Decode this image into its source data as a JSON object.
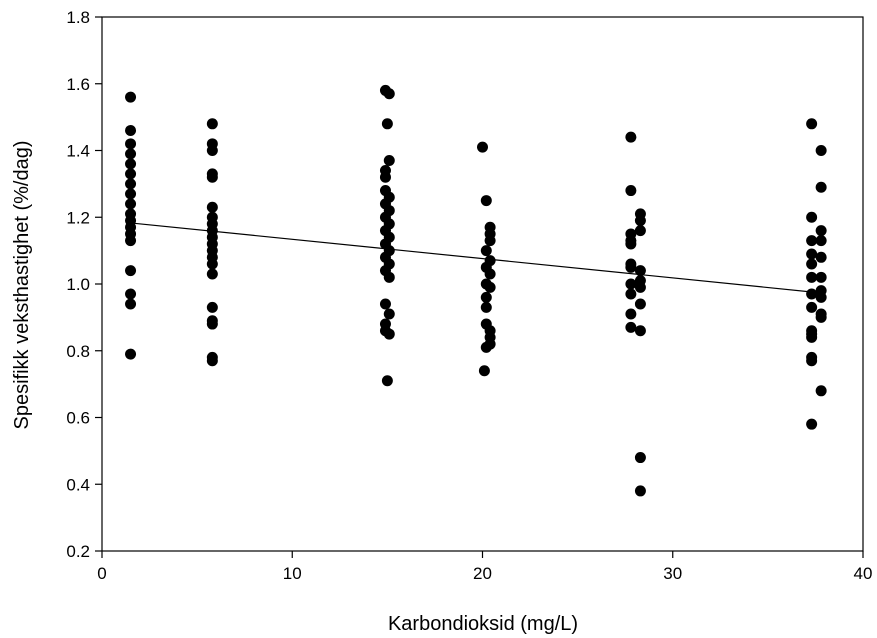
{
  "chart_data": {
    "type": "scatter",
    "title": "",
    "xlabel": "Karbondioksid (mg/L)",
    "ylabel": "Spesifikk veksthastighet (%/dag)",
    "xlim": [
      0,
      40
    ],
    "ylim": [
      0.2,
      1.8
    ],
    "x_ticks": [
      "0",
      "10",
      "20",
      "30",
      "40"
    ],
    "y_ticks": [
      "0.2",
      "0.4",
      "0.6",
      "0.8",
      "1.0",
      "1.2",
      "1.4",
      "1.6",
      "1.8"
    ],
    "grid": false,
    "legend": "none",
    "marker_color": "#000000",
    "series": [
      {
        "points": [
          [
            1.5,
            1.56
          ],
          [
            1.5,
            1.46
          ],
          [
            1.5,
            1.42
          ],
          [
            1.5,
            1.39
          ],
          [
            1.5,
            1.36
          ],
          [
            1.5,
            1.33
          ],
          [
            1.5,
            1.3
          ],
          [
            1.5,
            1.27
          ],
          [
            1.5,
            1.24
          ],
          [
            1.5,
            1.21
          ],
          [
            1.5,
            1.19
          ],
          [
            1.5,
            1.17
          ],
          [
            1.5,
            1.15
          ],
          [
            1.5,
            1.13
          ],
          [
            1.5,
            1.04
          ],
          [
            1.5,
            0.97
          ],
          [
            1.5,
            0.94
          ],
          [
            1.5,
            0.79
          ],
          [
            5.8,
            1.48
          ],
          [
            5.8,
            1.42
          ],
          [
            5.8,
            1.4
          ],
          [
            5.8,
            1.33
          ],
          [
            5.8,
            1.32
          ],
          [
            5.8,
            1.23
          ],
          [
            5.8,
            1.2
          ],
          [
            5.8,
            1.18
          ],
          [
            5.8,
            1.16
          ],
          [
            5.8,
            1.14
          ],
          [
            5.8,
            1.12
          ],
          [
            5.8,
            1.1
          ],
          [
            5.8,
            1.08
          ],
          [
            5.8,
            1.06
          ],
          [
            5.8,
            1.03
          ],
          [
            5.8,
            0.93
          ],
          [
            5.8,
            0.89
          ],
          [
            5.8,
            0.88
          ],
          [
            5.8,
            0.78
          ],
          [
            5.8,
            0.77
          ],
          [
            14.9,
            1.58
          ],
          [
            15.1,
            1.57
          ],
          [
            15.0,
            1.48
          ],
          [
            15.1,
            1.37
          ],
          [
            14.9,
            1.34
          ],
          [
            14.9,
            1.32
          ],
          [
            14.9,
            1.28
          ],
          [
            15.1,
            1.26
          ],
          [
            14.9,
            1.24
          ],
          [
            15.1,
            1.22
          ],
          [
            14.9,
            1.2
          ],
          [
            15.1,
            1.18
          ],
          [
            14.9,
            1.16
          ],
          [
            15.1,
            1.14
          ],
          [
            14.9,
            1.12
          ],
          [
            15.1,
            1.1
          ],
          [
            14.9,
            1.08
          ],
          [
            15.1,
            1.06
          ],
          [
            14.9,
            1.04
          ],
          [
            15.1,
            1.02
          ],
          [
            14.9,
            0.94
          ],
          [
            15.1,
            0.91
          ],
          [
            14.9,
            0.88
          ],
          [
            14.9,
            0.86
          ],
          [
            15.1,
            0.85
          ],
          [
            15.0,
            0.71
          ],
          [
            20.0,
            1.41
          ],
          [
            20.2,
            1.25
          ],
          [
            20.4,
            1.17
          ],
          [
            20.4,
            1.15
          ],
          [
            20.4,
            1.13
          ],
          [
            20.2,
            1.1
          ],
          [
            20.4,
            1.07
          ],
          [
            20.2,
            1.05
          ],
          [
            20.4,
            1.03
          ],
          [
            20.2,
            1.0
          ],
          [
            20.4,
            0.99
          ],
          [
            20.2,
            0.96
          ],
          [
            20.2,
            0.93
          ],
          [
            20.2,
            0.88
          ],
          [
            20.4,
            0.86
          ],
          [
            20.4,
            0.84
          ],
          [
            20.2,
            0.81
          ],
          [
            20.4,
            0.82
          ],
          [
            20.1,
            0.74
          ],
          [
            27.8,
            1.44
          ],
          [
            27.8,
            1.28
          ],
          [
            28.3,
            1.21
          ],
          [
            28.3,
            1.19
          ],
          [
            28.3,
            1.16
          ],
          [
            27.8,
            1.15
          ],
          [
            27.8,
            1.13
          ],
          [
            27.8,
            1.12
          ],
          [
            27.8,
            1.06
          ],
          [
            27.8,
            1.05
          ],
          [
            28.3,
            1.04
          ],
          [
            28.3,
            1.01
          ],
          [
            27.8,
            1.0
          ],
          [
            28.3,
            0.99
          ],
          [
            27.8,
            0.97
          ],
          [
            28.3,
            0.94
          ],
          [
            27.8,
            0.91
          ],
          [
            27.8,
            0.87
          ],
          [
            28.3,
            0.86
          ],
          [
            28.3,
            0.48
          ],
          [
            28.3,
            0.38
          ],
          [
            37.3,
            1.48
          ],
          [
            37.8,
            1.4
          ],
          [
            37.8,
            1.29
          ],
          [
            37.3,
            1.2
          ],
          [
            37.8,
            1.16
          ],
          [
            37.3,
            1.13
          ],
          [
            37.8,
            1.13
          ],
          [
            37.3,
            1.09
          ],
          [
            37.8,
            1.08
          ],
          [
            37.3,
            1.06
          ],
          [
            37.3,
            1.02
          ],
          [
            37.8,
            1.02
          ],
          [
            37.8,
            0.98
          ],
          [
            37.3,
            0.97
          ],
          [
            37.8,
            0.96
          ],
          [
            37.3,
            0.93
          ],
          [
            37.8,
            0.91
          ],
          [
            37.8,
            0.9
          ],
          [
            37.3,
            0.86
          ],
          [
            37.3,
            0.85
          ],
          [
            37.3,
            0.84
          ],
          [
            37.3,
            0.78
          ],
          [
            37.3,
            0.77
          ],
          [
            37.8,
            0.68
          ],
          [
            37.3,
            0.58
          ]
        ]
      }
    ],
    "trend_line": {
      "x": [
        1.5,
        37.5
      ],
      "y": [
        1.183,
        0.975
      ]
    }
  }
}
